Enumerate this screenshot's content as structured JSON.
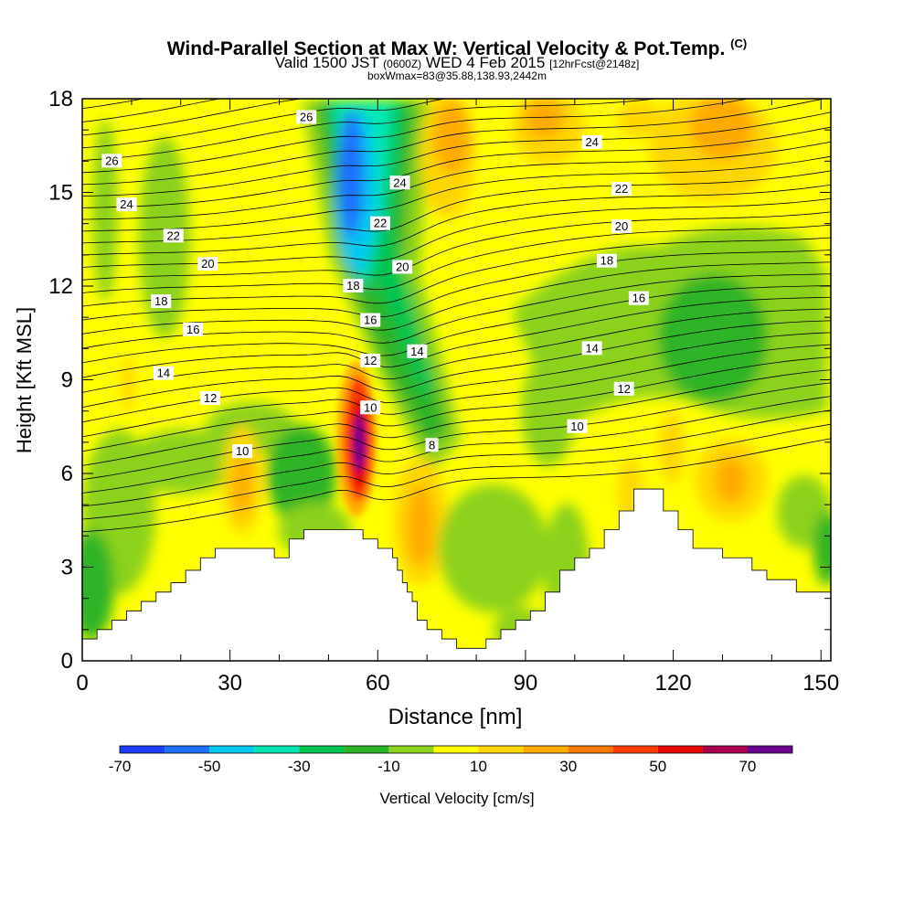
{
  "title": {
    "main": "Wind-Parallel Section at Max W: Vertical Velocity & Pot.Temp.",
    "copyright": "(C)",
    "valid_prefix": "Valid 1500 JST",
    "valid_utc": "(0600Z)",
    "valid_date": "WED 4 Feb 2015",
    "forecast": "[12hrFcst@2148z]",
    "boxinfo": "boxWmax=83@35.88,138.93,2442m"
  },
  "chart_data": {
    "type": "heatmap",
    "xlabel": "Distance [nm]",
    "ylabel": "Height [Kft MSL]",
    "xlim": [
      0,
      152
    ],
    "ylim": [
      0,
      18
    ],
    "x_ticks": [
      0,
      30,
      60,
      90,
      120,
      150
    ],
    "y_ticks": [
      0,
      3,
      6,
      9,
      12,
      15,
      18
    ],
    "colorbar": {
      "label": "Vertical Velocity [cm/s]",
      "tick_labels": [
        "-70",
        "-50",
        "-30",
        "-10",
        "10",
        "30",
        "50",
        "70"
      ],
      "colors": [
        "#1e3cff",
        "#1e6eff",
        "#00c8f0",
        "#00e6b4",
        "#00c450",
        "#2db426",
        "#8cd21e",
        "#ffff00",
        "#ffd700",
        "#ffaa00",
        "#ff7800",
        "#ff3c00",
        "#e60000",
        "#aa0050",
        "#6a0090"
      ]
    },
    "terrain": [
      [
        0,
        0.7
      ],
      [
        3,
        0.7
      ],
      [
        3,
        1.0
      ],
      [
        6,
        1.0
      ],
      [
        6,
        1.3
      ],
      [
        9,
        1.3
      ],
      [
        9,
        1.6
      ],
      [
        12,
        1.6
      ],
      [
        12,
        1.9
      ],
      [
        15,
        1.9
      ],
      [
        15,
        2.2
      ],
      [
        18,
        2.2
      ],
      [
        18,
        2.5
      ],
      [
        21,
        2.5
      ],
      [
        21,
        2.9
      ],
      [
        24,
        2.9
      ],
      [
        24,
        3.3
      ],
      [
        27,
        3.3
      ],
      [
        27,
        3.6
      ],
      [
        39,
        3.6
      ],
      [
        39,
        3.3
      ],
      [
        42,
        3.3
      ],
      [
        42,
        3.9
      ],
      [
        45,
        3.9
      ],
      [
        45,
        4.2
      ],
      [
        57,
        4.2
      ],
      [
        57,
        3.9
      ],
      [
        60,
        3.9
      ],
      [
        60,
        3.6
      ],
      [
        63,
        3.6
      ],
      [
        63,
        3.3
      ],
      [
        64,
        3.3
      ],
      [
        64,
        2.9
      ],
      [
        65,
        2.9
      ],
      [
        65,
        2.5
      ],
      [
        66,
        2.5
      ],
      [
        66,
        2.2
      ],
      [
        67,
        2.2
      ],
      [
        67,
        1.9
      ],
      [
        68,
        1.9
      ],
      [
        68,
        1.3
      ],
      [
        70,
        1.3
      ],
      [
        70,
        1.0
      ],
      [
        73,
        1.0
      ],
      [
        73,
        0.7
      ],
      [
        76,
        0.7
      ],
      [
        76,
        0.4
      ],
      [
        82,
        0.4
      ],
      [
        82,
        0.7
      ],
      [
        85,
        0.7
      ],
      [
        85,
        1.0
      ],
      [
        88,
        1.0
      ],
      [
        88,
        1.3
      ],
      [
        91,
        1.3
      ],
      [
        91,
        1.6
      ],
      [
        94,
        1.6
      ],
      [
        94,
        2.2
      ],
      [
        97,
        2.2
      ],
      [
        97,
        2.9
      ],
      [
        100,
        2.9
      ],
      [
        100,
        3.3
      ],
      [
        103,
        3.3
      ],
      [
        103,
        3.6
      ],
      [
        106,
        3.6
      ],
      [
        106,
        4.2
      ],
      [
        109,
        4.2
      ],
      [
        109,
        4.8
      ],
      [
        112,
        4.8
      ],
      [
        112,
        5.5
      ],
      [
        118,
        5.5
      ],
      [
        118,
        4.8
      ],
      [
        121,
        4.8
      ],
      [
        121,
        4.2
      ],
      [
        124,
        4.2
      ],
      [
        124,
        3.6
      ],
      [
        130,
        3.6
      ],
      [
        130,
        3.3
      ],
      [
        136,
        3.3
      ],
      [
        136,
        2.9
      ],
      [
        139,
        2.9
      ],
      [
        139,
        2.6
      ],
      [
        145,
        2.6
      ],
      [
        145,
        2.2
      ],
      [
        152,
        2.2
      ]
    ],
    "contour_labels": [
      {
        "text": "26",
        "x": 6,
        "y": 16.0
      },
      {
        "text": "24",
        "x": 9,
        "y": 14.6
      },
      {
        "text": "22",
        "x": 18.5,
        "y": 13.6
      },
      {
        "text": "20",
        "x": 25.5,
        "y": 12.7
      },
      {
        "text": "18",
        "x": 16,
        "y": 11.5
      },
      {
        "text": "16",
        "x": 22.5,
        "y": 10.6
      },
      {
        "text": "14",
        "x": 16.5,
        "y": 9.2
      },
      {
        "text": "12",
        "x": 26,
        "y": 8.4
      },
      {
        "text": "10",
        "x": 32.5,
        "y": 6.7
      },
      {
        "text": "26",
        "x": 45.5,
        "y": 17.4
      },
      {
        "text": "24",
        "x": 64.5,
        "y": 15.3
      },
      {
        "text": "22",
        "x": 60.5,
        "y": 14.0
      },
      {
        "text": "20",
        "x": 65,
        "y": 12.6
      },
      {
        "text": "18",
        "x": 55,
        "y": 12.0
      },
      {
        "text": "16",
        "x": 58.5,
        "y": 10.9
      },
      {
        "text": "14",
        "x": 68,
        "y": 9.9
      },
      {
        "text": "12",
        "x": 58.5,
        "y": 9.6
      },
      {
        "text": "10",
        "x": 58.5,
        "y": 8.1
      },
      {
        "text": "8",
        "x": 71,
        "y": 6.9
      },
      {
        "text": "24",
        "x": 103.5,
        "y": 16.6
      },
      {
        "text": "22",
        "x": 109.5,
        "y": 15.1
      },
      {
        "text": "20",
        "x": 109.5,
        "y": 13.9
      },
      {
        "text": "18",
        "x": 106.5,
        "y": 12.8
      },
      {
        "text": "16",
        "x": 113,
        "y": 11.6
      },
      {
        "text": "14",
        "x": 103.5,
        "y": 10.0
      },
      {
        "text": "12",
        "x": 110,
        "y": 8.7
      },
      {
        "text": "10",
        "x": 100.5,
        "y": 7.5
      }
    ]
  }
}
